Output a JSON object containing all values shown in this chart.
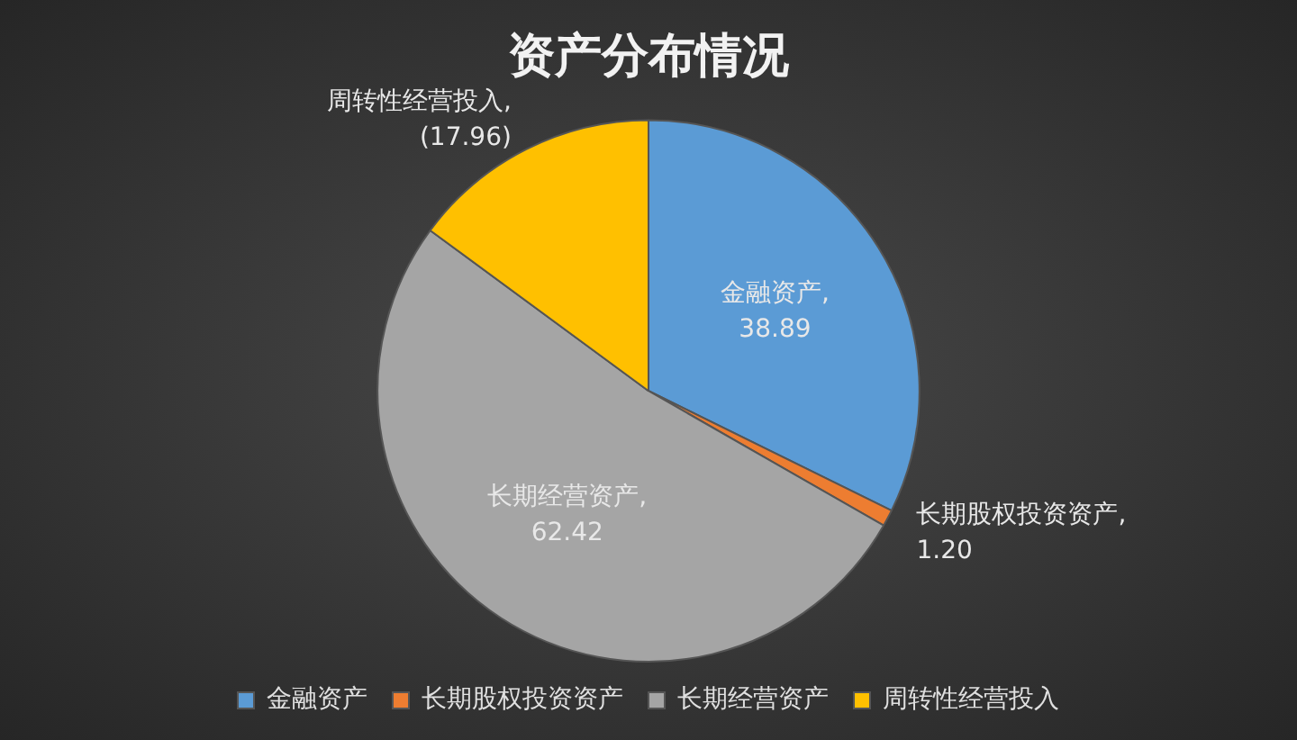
{
  "chart_data": {
    "type": "pie",
    "title": "资产分布情况",
    "categories": [
      "金融资产",
      "长期股权投资资产",
      "长期经营资产",
      "周转性经营投入"
    ],
    "values": [
      38.89,
      1.2,
      62.42,
      17.96
    ],
    "value_labels": [
      "金融资产, 38.89",
      "长期股权投资资产, 1.20",
      "长期经营资产, 62.42",
      "周转性经营投入, (17.96)"
    ],
    "colors": [
      "#5b9bd5",
      "#ed7d31",
      "#a5a5a5",
      "#ffc000"
    ],
    "legend": "bottom"
  }
}
